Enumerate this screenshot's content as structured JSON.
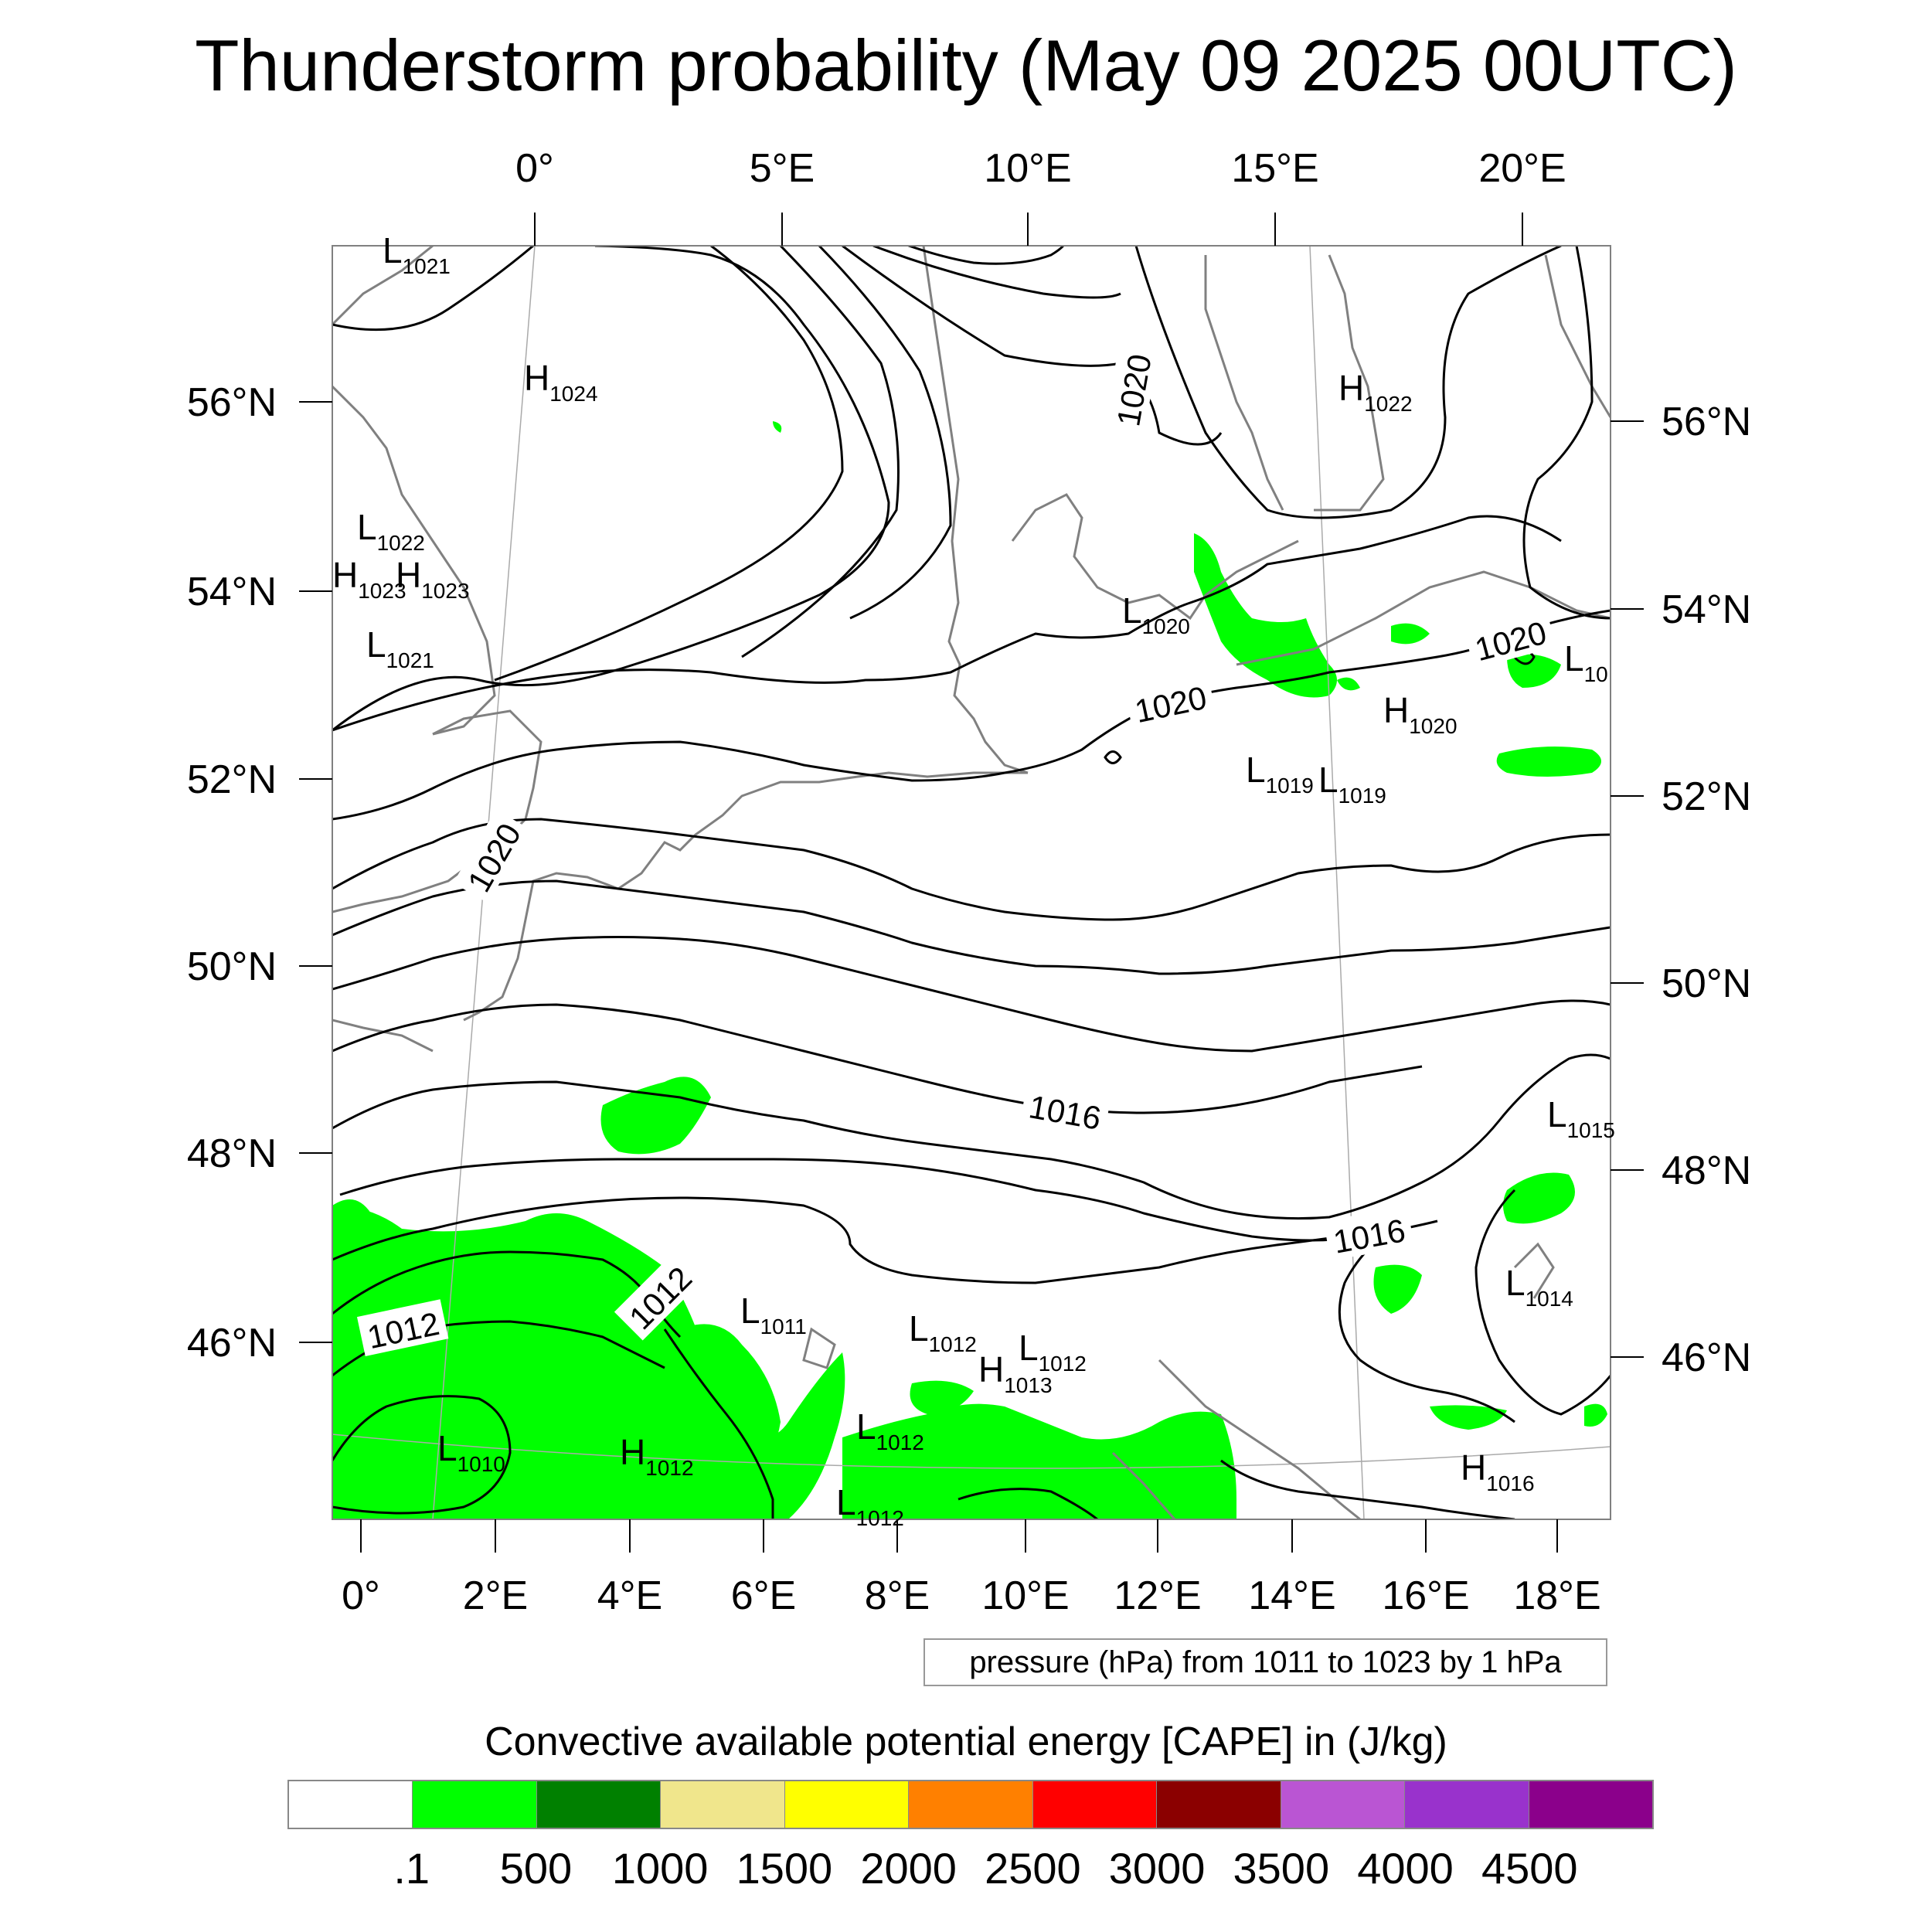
{
  "title": "Thunderstorm probability (May 09 2025 00UTC)",
  "axes": {
    "top_lon_labels": [
      "0°",
      "5°E",
      "10°E",
      "15°E",
      "20°E"
    ],
    "bottom_lon_labels": [
      "0°",
      "2°E",
      "4°E",
      "6°E",
      "8°E",
      "10°E",
      "12°E",
      "14°E",
      "16°E",
      "18°E"
    ],
    "left_lat_labels": [
      "56°N",
      "54°N",
      "52°N",
      "50°N",
      "48°N",
      "46°N"
    ],
    "right_lat_labels": [
      "56°N",
      "54°N",
      "52°N",
      "50°N",
      "48°N",
      "46°N"
    ]
  },
  "contour_labels": [
    "1020",
    "1020",
    "1020",
    "1020",
    "1016",
    "1016",
    "1012",
    "1012"
  ],
  "pressure_centers": [
    {
      "type": "L",
      "value": "1021"
    },
    {
      "type": "H",
      "value": "1024"
    },
    {
      "type": "L",
      "value": "1022"
    },
    {
      "type": "H",
      "value": "1023"
    },
    {
      "type": "H",
      "value": "1023"
    },
    {
      "type": "L",
      "value": "1021"
    },
    {
      "type": "H",
      "value": "1022"
    },
    {
      "type": "L",
      "value": "1020"
    },
    {
      "type": "H",
      "value": "1020"
    },
    {
      "type": "L",
      "value": "1019"
    },
    {
      "type": "L",
      "value": "1019"
    },
    {
      "type": "L",
      "value": "10"
    },
    {
      "type": "L",
      "value": "1015"
    },
    {
      "type": "L",
      "value": "1014"
    },
    {
      "type": "L",
      "value": "1011"
    },
    {
      "type": "L",
      "value": "1012"
    },
    {
      "type": "L",
      "value": "1012"
    },
    {
      "type": "H",
      "value": "1013"
    },
    {
      "type": "L",
      "value": "1012"
    },
    {
      "type": "L",
      "value": "1010"
    },
    {
      "type": "H",
      "value": "1012"
    },
    {
      "type": "H",
      "value": "1016"
    },
    {
      "type": "L",
      "value": "1012"
    }
  ],
  "pressure_note": "pressure (hPa) from 1011 to 1023 by 1 hPa",
  "colorbar": {
    "label": "Convective available potential energy [CAPE] in (J/kg)",
    "ticks": [
      ".1",
      "500",
      "1000",
      "1500",
      "2000",
      "2500",
      "3000",
      "3500",
      "4000",
      "4500"
    ],
    "colors": [
      "#ffffff",
      "#00ff00",
      "#008000",
      "#f0e68c",
      "#ffff00",
      "#ff8000",
      "#ff0000",
      "#8b0000",
      "#ba55d3",
      "#9932cc",
      "#8b008b"
    ]
  },
  "colors": {
    "cape_green": "#00ff00",
    "isobar": "#000000",
    "coastline": "#808080",
    "graticule": "#aaaaaa"
  }
}
